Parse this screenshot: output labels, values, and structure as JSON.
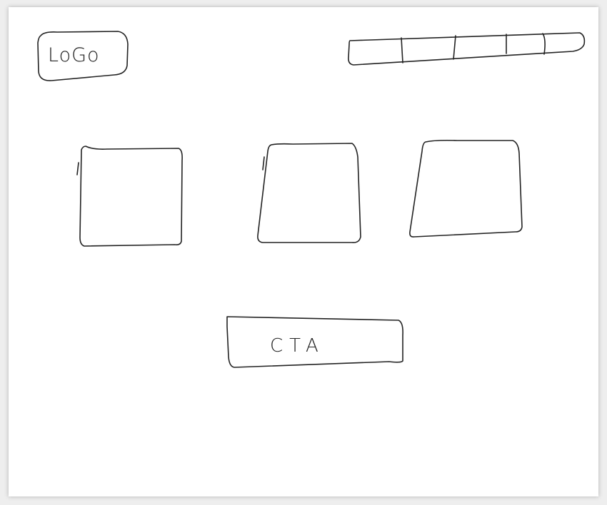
{
  "logo": {
    "label": "LoGo"
  },
  "nav": {
    "segments": 4
  },
  "cards": {
    "count": 3
  },
  "cta": {
    "label": "CTA"
  },
  "colors": {
    "ink": "#222222",
    "paper": "#ffffff",
    "background": "#eeeeee"
  }
}
